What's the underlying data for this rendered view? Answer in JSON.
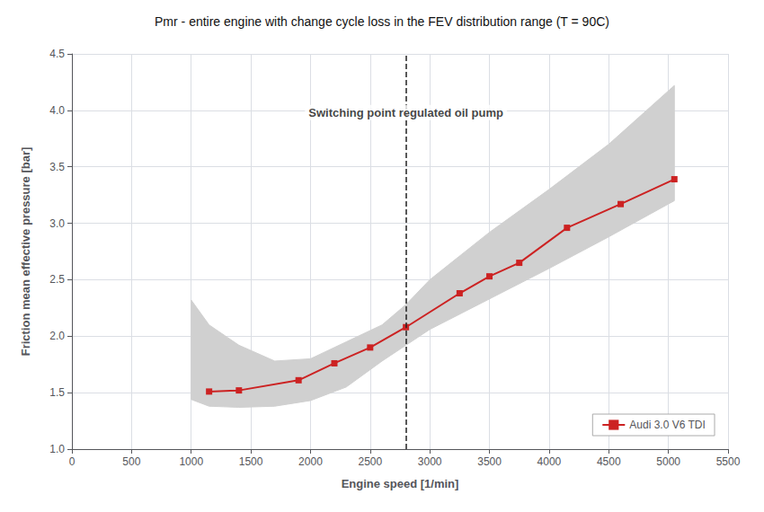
{
  "chart_data": {
    "type": "line",
    "title": "Pmr - entire engine with change cycle loss in the FEV distribution range (T = 90C)",
    "xlabel": "Engine speed [1/min]",
    "ylabel": "Friction mean effective pressure [bar]",
    "xlim": [
      0,
      5500
    ],
    "ylim": [
      1.0,
      4.5
    ],
    "xticks": [
      0,
      500,
      1000,
      1500,
      2000,
      2500,
      3000,
      3500,
      4000,
      4500,
      5000,
      5500
    ],
    "yticks": [
      {
        "value": 1.0,
        "label": "1.0"
      },
      1.5,
      {
        "value": 2.0,
        "label": "2.0"
      },
      2.5,
      {
        "value": 3.0,
        "label": "3.0"
      },
      3.5,
      {
        "value": 4.0,
        "label": "4.0"
      },
      4.5
    ],
    "grid": true,
    "legend": "lower right",
    "series": [
      {
        "type": "band",
        "color": "#d0d0d0",
        "x": [
          1000,
          1150,
          1400,
          1700,
          2000,
          2300,
          2600,
          2800,
          3000,
          3500,
          4000,
          4500,
          5050
        ],
        "upper": [
          2.32,
          2.1,
          1.92,
          1.78,
          1.8,
          1.95,
          2.1,
          2.28,
          2.5,
          2.92,
          3.3,
          3.7,
          4.22
        ],
        "lower": [
          1.44,
          1.38,
          1.37,
          1.38,
          1.43,
          1.55,
          1.78,
          1.92,
          2.06,
          2.33,
          2.6,
          2.88,
          3.2
        ]
      },
      {
        "name": "Audi 3.0 V6 TDI",
        "type": "line",
        "color": "#cc2222",
        "marker": "square",
        "x": [
          1150,
          1400,
          1900,
          2200,
          2500,
          2800,
          3250,
          3500,
          3750,
          4150,
          4600,
          5050
        ],
        "values": [
          1.51,
          1.52,
          1.61,
          1.76,
          1.9,
          2.08,
          2.38,
          2.53,
          2.65,
          2.96,
          3.17,
          3.39
        ]
      }
    ],
    "vlines": [
      {
        "x": 2800,
        "color": "#222222",
        "line_style": "dashed"
      }
    ],
    "annotations": [
      {
        "text": "Switching point regulated oil pump",
        "x": 2800,
        "y": 3.98
      }
    ]
  }
}
